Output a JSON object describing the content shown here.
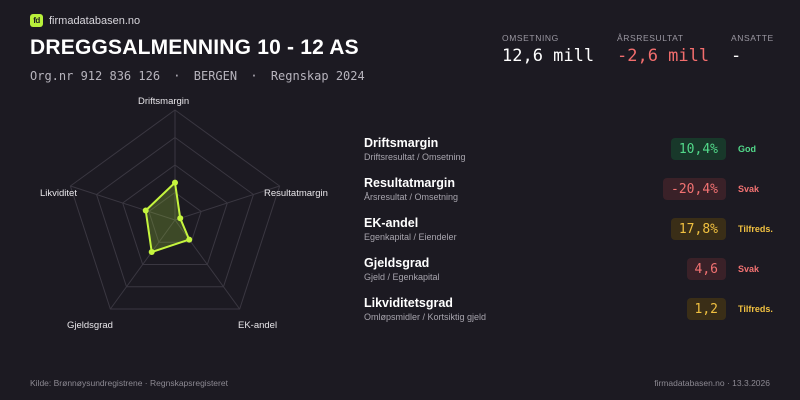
{
  "brand": {
    "name": "firmadatabasen.no",
    "logo_text": "fd"
  },
  "company": {
    "name": "DREGGSALMENNING 10 - 12 AS",
    "orgnr": "Org.nr 912 836 126",
    "city": "BERGEN",
    "period": "Regnskap 2024",
    "separator": "·"
  },
  "kpis": [
    {
      "label": "OMSETNING",
      "value": "12,6 mill"
    },
    {
      "label": "ÅRSRESULTAT",
      "value": "-2,6 mill"
    },
    {
      "label": "ANSATTE",
      "value": "-"
    }
  ],
  "radar": {
    "axes": [
      "Driftsmargin",
      "Resultatmargin",
      "EK-andel",
      "Gjeldsgrad",
      "Likviditet"
    ],
    "scores": [
      0.34,
      0.05,
      0.22,
      0.36,
      0.28
    ],
    "colors": {
      "grid": "#3a3741",
      "fill": "#b8f03a",
      "stroke": "#c5f53e"
    }
  },
  "metrics": [
    {
      "name": "Driftsmargin",
      "formula": "Driftsresultat / Omsetning",
      "value": "10,4%",
      "status": "God",
      "tone": "good"
    },
    {
      "name": "Resultatmargin",
      "formula": "Årsresultat / Omsetning",
      "value": "-20,4%",
      "status": "Svak",
      "tone": "weak"
    },
    {
      "name": "EK-andel",
      "formula": "Egenkapital / Eiendeler",
      "value": "17,8%",
      "status": "Tilfreds.",
      "tone": "ok"
    },
    {
      "name": "Gjeldsgrad",
      "formula": "Gjeld / Egenkapital",
      "value": "4,6",
      "status": "Svak",
      "tone": "weak"
    },
    {
      "name": "Likviditetsgrad",
      "formula": "Omløpsmidler / Kortsiktig gjeld",
      "value": "1,2",
      "status": "Tilfreds.",
      "tone": "ok"
    }
  ],
  "footer": {
    "source": "Kilde: Brønnøysundregistrene · Regnskapsregisteret",
    "site_date": "firmadatabasen.no · 13.3.2026"
  }
}
